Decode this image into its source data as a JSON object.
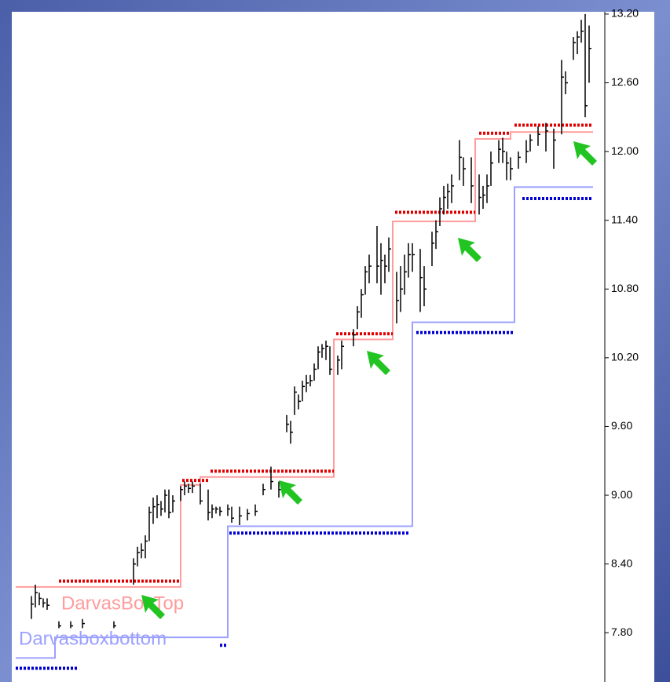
{
  "chart_data": {
    "type": "ohlc",
    "xlim": [
      0,
      149
    ],
    "ylim": [
      7.37,
      13.22
    ],
    "yticks": [
      {
        "value": 7.8,
        "label": "7.80"
      },
      {
        "value": 8.4,
        "label": "8.40"
      },
      {
        "value": 9.0,
        "label": "9.00"
      },
      {
        "value": 9.6,
        "label": "9.60"
      },
      {
        "value": 10.2,
        "label": "10.20"
      },
      {
        "value": 10.8,
        "label": "10.80"
      },
      {
        "value": 11.4,
        "label": "11.40"
      },
      {
        "value": 12.0,
        "label": "12.00"
      },
      {
        "value": 12.6,
        "label": "12.60"
      },
      {
        "value": 13.2,
        "label": "13.20"
      }
    ],
    "bars": {
      "color": "#000000",
      "x": [
        4,
        5,
        6,
        7,
        8,
        11,
        14,
        17,
        25,
        30,
        31,
        32,
        33,
        34,
        35,
        36,
        37,
        38,
        39,
        40,
        42,
        43,
        44,
        45,
        47,
        49,
        50,
        51,
        52,
        54,
        55,
        57,
        59,
        61,
        63,
        65,
        67,
        69,
        70,
        71,
        72,
        73,
        74,
        75,
        76,
        77,
        78,
        79,
        80,
        82,
        83,
        86,
        87,
        88,
        89,
        90,
        92,
        93,
        94,
        95,
        97,
        98,
        99,
        100,
        101,
        103,
        104,
        106,
        107,
        108,
        109,
        110,
        111,
        113,
        114,
        116,
        118,
        119,
        120,
        121,
        123,
        124,
        125,
        126,
        128,
        130,
        131,
        133,
        135,
        137,
        139,
        140,
        142,
        143,
        144,
        145,
        146
      ],
      "high": [
        8.12,
        8.22,
        8.15,
        8.1,
        8.1,
        7.9,
        7.9,
        7.92,
        7.9,
        8.45,
        8.55,
        8.58,
        8.65,
        8.9,
        8.98,
        9.0,
        8.95,
        9.05,
        9.05,
        9.0,
        9.08,
        9.12,
        9.1,
        9.12,
        9.1,
        9.05,
        8.92,
        8.9,
        8.9,
        8.92,
        8.9,
        8.9,
        8.88,
        8.92,
        9.1,
        9.25,
        9.12,
        9.7,
        9.65,
        9.95,
        9.88,
        10.0,
        10.05,
        10.05,
        10.15,
        10.3,
        10.32,
        10.35,
        10.3,
        10.22,
        10.35,
        10.45,
        10.65,
        10.8,
        11.0,
        11.1,
        11.35,
        11.2,
        11.1,
        11.25,
        10.95,
        11.0,
        11.1,
        11.2,
        11.2,
        11.15,
        11.0,
        11.3,
        11.4,
        11.6,
        11.7,
        11.72,
        11.8,
        12.1,
        11.95,
        11.95,
        11.8,
        11.7,
        11.8,
        12.0,
        12.1,
        12.12,
        12.0,
        11.95,
        12.0,
        12.1,
        12.15,
        12.22,
        12.25,
        12.2,
        12.8,
        12.7,
        13.0,
        13.05,
        13.15,
        13.2,
        13.1
      ],
      "low": [
        7.92,
        8.02,
        8.04,
        8.02,
        8.0,
        7.84,
        7.84,
        7.84,
        7.84,
        8.22,
        8.38,
        8.45,
        8.45,
        8.6,
        8.75,
        8.8,
        8.82,
        8.85,
        8.8,
        8.85,
        8.95,
        9.0,
        9.02,
        9.02,
        8.92,
        8.78,
        8.8,
        8.84,
        8.82,
        8.82,
        8.76,
        8.74,
        8.78,
        8.82,
        9.0,
        9.05,
        8.98,
        9.55,
        9.45,
        9.7,
        9.75,
        9.82,
        9.9,
        9.95,
        10.0,
        10.1,
        10.2,
        10.18,
        10.05,
        10.05,
        10.1,
        10.3,
        10.45,
        10.55,
        10.75,
        10.85,
        10.85,
        10.75,
        10.85,
        10.95,
        10.5,
        10.6,
        10.75,
        10.9,
        10.95,
        10.6,
        10.65,
        11.0,
        11.15,
        11.35,
        11.45,
        11.5,
        11.55,
        11.75,
        11.7,
        11.55,
        11.45,
        11.5,
        11.55,
        11.7,
        11.9,
        11.9,
        11.75,
        11.75,
        11.85,
        11.9,
        12.0,
        12.05,
        12.0,
        11.85,
        12.15,
        12.5,
        12.8,
        12.85,
        12.95,
        12.3,
        12.6
      ],
      "close": [
        8.05,
        8.15,
        8.1,
        8.06,
        8.04,
        7.86,
        7.86,
        7.88,
        7.86,
        8.4,
        8.5,
        8.52,
        8.6,
        8.85,
        8.9,
        8.92,
        8.88,
        9.0,
        8.85,
        8.95,
        9.05,
        9.08,
        9.06,
        9.08,
        8.95,
        8.85,
        8.88,
        8.88,
        8.86,
        8.88,
        8.8,
        8.82,
        8.84,
        8.86,
        9.05,
        9.12,
        9.05,
        9.62,
        9.55,
        9.9,
        9.82,
        9.95,
        9.98,
        10.0,
        10.1,
        10.25,
        10.28,
        10.3,
        10.1,
        10.18,
        10.3,
        10.4,
        10.6,
        10.75,
        10.95,
        11.0,
        11.0,
        11.05,
        11.0,
        11.15,
        10.7,
        10.8,
        10.95,
        11.1,
        11.1,
        10.9,
        10.8,
        11.2,
        11.3,
        11.5,
        11.6,
        11.65,
        11.7,
        11.95,
        11.85,
        11.7,
        11.6,
        11.62,
        11.7,
        11.9,
        12.02,
        12.0,
        11.9,
        11.85,
        11.95,
        12.0,
        12.1,
        12.15,
        12.18,
        12.1,
        12.65,
        12.6,
        12.95,
        13.0,
        13.05,
        12.4,
        12.9
      ]
    },
    "lines": [
      {
        "name": "DarvasBoxTop",
        "color": "#ff9c9c",
        "x": [
          0,
          42,
          47,
          81,
          96,
          117,
          126,
          147
        ],
        "values": [
          8.2,
          9.09,
          9.16,
          10.36,
          11.39,
          12.11,
          12.17,
          12.17
        ]
      },
      {
        "name": "Darvasboxbottom",
        "color": "#9ca0ff",
        "x": [
          0,
          10,
          54,
          101,
          127,
          147
        ],
        "values": [
          7.58,
          7.76,
          8.73,
          10.51,
          11.69,
          11.69
        ]
      }
    ],
    "boxes": [
      {
        "color": "#e00000",
        "start": [
          11,
          42.4,
          49.6,
          81.6,
          96.6,
          118,
          127
        ],
        "end": [
          42,
          49,
          81,
          96,
          117,
          126,
          147
        ],
        "values": [
          8.25,
          9.13,
          9.21,
          10.41,
          11.47,
          12.16,
          12.23
        ]
      },
      {
        "color": "#0000d0",
        "start": [
          0,
          52,
          54.4,
          102,
          129
        ],
        "end": [
          16,
          54,
          100.4,
          127,
          147
        ],
        "values": [
          7.49,
          7.69,
          8.67,
          10.42,
          11.59
        ]
      }
    ]
  }
}
